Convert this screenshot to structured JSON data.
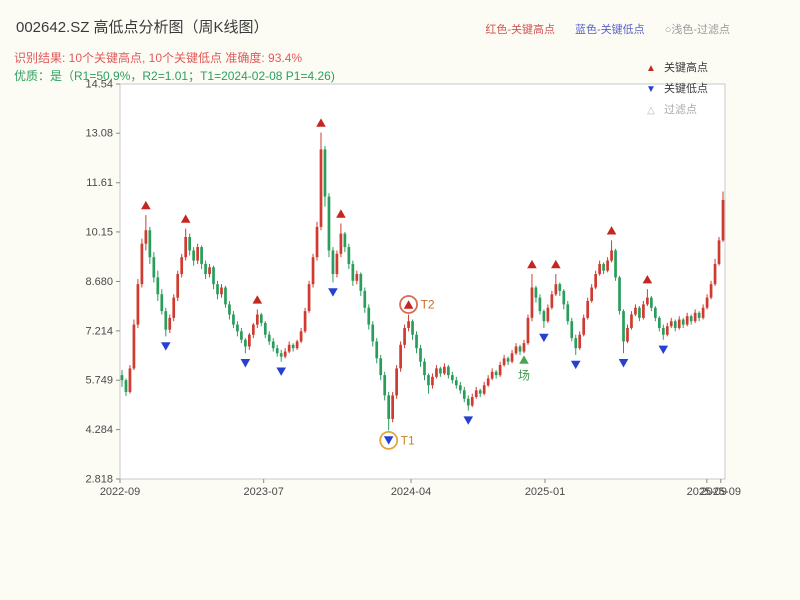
{
  "title": "002642.SZ 高低点分析图（周K线图）",
  "top_legend": {
    "high": "红色-关键高点",
    "low": "蓝色-关键低点",
    "filter": "○浅色-过滤点"
  },
  "subtitle_red": "识别结果: 10个关键高点, 10个关键低点  准确度: 93.4%",
  "subtitle_green": "优质：是（R1=50.9%，R2=1.01；T1=2024-02-08 P1=4.26)",
  "chart_legend": {
    "items": [
      {
        "glyph": "▲",
        "label": "关键高点"
      },
      {
        "glyph": "▼",
        "label": "关键低点"
      },
      {
        "glyph": "△",
        "label": "过滤点"
      }
    ]
  },
  "chart_data": {
    "type": "candlestick",
    "symbol": "002642.SZ",
    "interval": "weekly",
    "title": "002642.SZ 高低点分析图（周K线图）",
    "ylim": [
      2.818,
      14.54
    ],
    "up_color": "#cf3b30",
    "down_color": "#2a9d5c",
    "high_marker_color": "#c42720",
    "low_marker_color": "#2840cf",
    "y_ticks": [
      {
        "label": "14.54",
        "value": 14.54
      },
      {
        "label": "13.08",
        "value": 13.08
      },
      {
        "label": "11.61",
        "value": 11.61
      },
      {
        "label": "10.15",
        "value": 10.15
      },
      {
        "label": "8.680",
        "value": 8.68
      },
      {
        "label": "7.214",
        "value": 7.214
      },
      {
        "label": "5.749",
        "value": 5.749
      },
      {
        "label": "4.284",
        "value": 4.284
      },
      {
        "label": "2.818",
        "value": 2.818
      }
    ],
    "x_ticks": [
      {
        "label": "2022-09",
        "pos": 0.0
      },
      {
        "label": "2023-07",
        "pos": 0.2375
      },
      {
        "label": "2024-04",
        "pos": 0.481
      },
      {
        "label": "2025-01",
        "pos": 0.7025
      },
      {
        "label": "2025-09",
        "pos": 0.97
      },
      {
        "label": "2025-09",
        "pos": 0.993
      }
    ],
    "candles": [
      [
        5.9,
        6.05,
        5.55,
        5.75
      ],
      [
        5.75,
        5.8,
        5.28,
        5.4
      ],
      [
        5.4,
        6.2,
        5.35,
        6.1
      ],
      [
        6.1,
        7.55,
        6.05,
        7.4
      ],
      [
        7.4,
        8.75,
        7.3,
        8.6
      ],
      [
        8.6,
        9.95,
        8.5,
        9.8
      ],
      [
        9.8,
        10.65,
        9.6,
        10.2
      ],
      [
        10.2,
        10.3,
        9.2,
        9.4
      ],
      [
        9.4,
        9.55,
        8.65,
        8.8
      ],
      [
        8.8,
        9.0,
        8.1,
        8.3
      ],
      [
        8.3,
        8.45,
        7.7,
        7.8
      ],
      [
        7.8,
        7.9,
        7.05,
        7.25
      ],
      [
        7.25,
        7.7,
        7.15,
        7.6
      ],
      [
        7.6,
        8.3,
        7.5,
        8.2
      ],
      [
        8.2,
        9.0,
        8.1,
        8.9
      ],
      [
        8.9,
        9.5,
        8.8,
        9.4
      ],
      [
        9.4,
        10.25,
        9.3,
        10.0
      ],
      [
        10.0,
        10.1,
        9.45,
        9.6
      ],
      [
        9.6,
        9.7,
        9.15,
        9.3
      ],
      [
        9.3,
        9.8,
        9.2,
        9.7
      ],
      [
        9.7,
        9.75,
        9.05,
        9.2
      ],
      [
        9.2,
        9.3,
        8.75,
        8.9
      ],
      [
        8.9,
        9.2,
        8.8,
        9.1
      ],
      [
        9.1,
        9.15,
        8.45,
        8.6
      ],
      [
        8.6,
        8.7,
        8.15,
        8.3
      ],
      [
        8.3,
        8.6,
        8.2,
        8.5
      ],
      [
        8.5,
        8.55,
        7.9,
        8.0
      ],
      [
        8.0,
        8.1,
        7.55,
        7.7
      ],
      [
        7.7,
        7.8,
        7.3,
        7.4
      ],
      [
        7.4,
        7.5,
        7.05,
        7.2
      ],
      [
        7.2,
        7.3,
        6.85,
        6.95
      ],
      [
        6.95,
        7.0,
        6.55,
        6.75
      ],
      [
        6.75,
        7.15,
        6.65,
        7.1
      ],
      [
        7.1,
        7.45,
        7.0,
        7.4
      ],
      [
        7.4,
        7.85,
        7.3,
        7.7
      ],
      [
        7.7,
        7.75,
        7.35,
        7.45
      ],
      [
        7.45,
        7.5,
        7.0,
        7.1
      ],
      [
        7.1,
        7.2,
        6.8,
        6.9
      ],
      [
        6.9,
        7.0,
        6.6,
        6.7
      ],
      [
        6.7,
        6.8,
        6.45,
        6.55
      ],
      [
        6.55,
        6.65,
        6.3,
        6.45
      ],
      [
        6.45,
        6.7,
        6.4,
        6.6
      ],
      [
        6.6,
        6.9,
        6.55,
        6.8
      ],
      [
        6.8,
        6.85,
        6.6,
        6.7
      ],
      [
        6.7,
        6.95,
        6.65,
        6.9
      ],
      [
        6.9,
        7.3,
        6.85,
        7.2
      ],
      [
        7.2,
        7.9,
        7.15,
        7.8
      ],
      [
        7.8,
        8.7,
        7.75,
        8.6
      ],
      [
        8.6,
        9.5,
        8.5,
        9.4
      ],
      [
        9.4,
        10.45,
        9.3,
        10.3
      ],
      [
        10.3,
        13.1,
        10.2,
        12.6
      ],
      [
        12.6,
        12.7,
        10.9,
        11.2
      ],
      [
        11.2,
        11.3,
        9.4,
        9.6
      ],
      [
        9.6,
        9.7,
        8.65,
        8.9
      ],
      [
        8.9,
        9.6,
        8.8,
        9.5
      ],
      [
        9.5,
        10.4,
        9.4,
        10.1
      ],
      [
        10.1,
        10.15,
        9.55,
        9.7
      ],
      [
        9.7,
        9.8,
        9.05,
        9.2
      ],
      [
        9.2,
        9.3,
        8.55,
        8.7
      ],
      [
        8.7,
        9.0,
        8.6,
        8.9
      ],
      [
        8.9,
        8.95,
        8.25,
        8.4
      ],
      [
        8.4,
        8.5,
        7.75,
        7.9
      ],
      [
        7.9,
        8.0,
        7.25,
        7.4
      ],
      [
        7.4,
        7.5,
        6.75,
        6.9
      ],
      [
        6.9,
        7.0,
        6.25,
        6.4
      ],
      [
        6.4,
        6.5,
        5.75,
        5.9
      ],
      [
        5.9,
        6.0,
        5.15,
        5.3
      ],
      [
        5.3,
        5.4,
        4.26,
        4.6
      ],
      [
        4.6,
        5.4,
        4.5,
        5.3
      ],
      [
        5.3,
        6.2,
        5.2,
        6.1
      ],
      [
        6.1,
        6.9,
        6.0,
        6.8
      ],
      [
        6.8,
        7.4,
        6.7,
        7.3
      ],
      [
        7.3,
        7.7,
        7.2,
        7.5
      ],
      [
        7.5,
        7.55,
        6.95,
        7.1
      ],
      [
        7.1,
        7.2,
        6.55,
        6.7
      ],
      [
        6.7,
        6.8,
        6.15,
        6.3
      ],
      [
        6.3,
        6.4,
        5.75,
        5.9
      ],
      [
        5.9,
        5.95,
        5.35,
        5.6
      ],
      [
        5.6,
        5.95,
        5.5,
        5.85
      ],
      [
        5.85,
        6.2,
        5.8,
        6.1
      ],
      [
        6.1,
        6.15,
        5.85,
        5.95
      ],
      [
        5.95,
        6.25,
        5.9,
        6.15
      ],
      [
        6.15,
        6.2,
        5.8,
        5.9
      ],
      [
        5.9,
        6.0,
        5.65,
        5.75
      ],
      [
        5.75,
        5.85,
        5.5,
        5.6
      ],
      [
        5.6,
        5.7,
        5.35,
        5.45
      ],
      [
        5.45,
        5.55,
        5.1,
        5.2
      ],
      [
        5.2,
        5.3,
        4.85,
        5.0
      ],
      [
        5.0,
        5.35,
        4.95,
        5.25
      ],
      [
        5.25,
        5.55,
        5.2,
        5.45
      ],
      [
        5.45,
        5.5,
        5.25,
        5.35
      ],
      [
        5.35,
        5.7,
        5.3,
        5.6
      ],
      [
        5.6,
        5.9,
        5.55,
        5.8
      ],
      [
        5.8,
        6.1,
        5.75,
        6.0
      ],
      [
        6.0,
        6.05,
        5.8,
        5.9
      ],
      [
        5.9,
        6.3,
        5.85,
        6.2
      ],
      [
        6.2,
        6.5,
        6.15,
        6.4
      ],
      [
        6.4,
        6.45,
        6.2,
        6.3
      ],
      [
        6.3,
        6.65,
        6.25,
        6.55
      ],
      [
        6.55,
        6.85,
        6.5,
        6.75
      ],
      [
        6.75,
        6.8,
        6.5,
        6.6
      ],
      [
        6.6,
        6.95,
        6.55,
        6.85
      ],
      [
        6.85,
        7.7,
        6.8,
        7.6
      ],
      [
        7.6,
        8.9,
        7.5,
        8.5
      ],
      [
        8.5,
        8.55,
        8.05,
        8.2
      ],
      [
        8.2,
        8.3,
        7.7,
        7.8
      ],
      [
        7.8,
        7.85,
        7.3,
        7.5
      ],
      [
        7.5,
        8.0,
        7.45,
        7.9
      ],
      [
        7.9,
        8.4,
        7.85,
        8.3
      ],
      [
        8.3,
        8.9,
        8.25,
        8.6
      ],
      [
        8.6,
        8.65,
        8.25,
        8.4
      ],
      [
        8.4,
        8.45,
        7.85,
        8.0
      ],
      [
        8.0,
        8.1,
        7.4,
        7.5
      ],
      [
        7.5,
        7.6,
        6.9,
        7.0
      ],
      [
        7.0,
        7.1,
        6.5,
        6.7
      ],
      [
        6.7,
        7.2,
        6.65,
        7.1
      ],
      [
        7.1,
        7.7,
        7.05,
        7.6
      ],
      [
        7.6,
        8.2,
        7.55,
        8.1
      ],
      [
        8.1,
        8.6,
        8.05,
        8.5
      ],
      [
        8.5,
        9.0,
        8.45,
        8.9
      ],
      [
        8.9,
        9.3,
        8.85,
        9.2
      ],
      [
        9.2,
        9.25,
        8.9,
        9.0
      ],
      [
        9.0,
        9.4,
        8.95,
        9.3
      ],
      [
        9.3,
        9.9,
        9.25,
        9.6
      ],
      [
        9.6,
        9.65,
        8.7,
        8.8
      ],
      [
        8.8,
        8.85,
        7.7,
        7.8
      ],
      [
        7.8,
        7.85,
        6.55,
        6.9
      ],
      [
        6.9,
        7.4,
        6.85,
        7.3
      ],
      [
        7.3,
        7.8,
        7.25,
        7.7
      ],
      [
        7.7,
        8.0,
        7.65,
        7.9
      ],
      [
        7.9,
        7.95,
        7.5,
        7.6
      ],
      [
        7.6,
        8.1,
        7.55,
        8.0
      ],
      [
        8.0,
        8.45,
        7.95,
        8.2
      ],
      [
        8.2,
        8.25,
        7.8,
        7.9
      ],
      [
        7.9,
        7.95,
        7.5,
        7.6
      ],
      [
        7.6,
        7.65,
        7.2,
        7.3
      ],
      [
        7.3,
        7.4,
        6.95,
        7.1
      ],
      [
        7.1,
        7.45,
        7.05,
        7.35
      ],
      [
        7.35,
        7.6,
        7.3,
        7.5
      ],
      [
        7.5,
        7.55,
        7.2,
        7.3
      ],
      [
        7.3,
        7.65,
        7.25,
        7.55
      ],
      [
        7.55,
        7.6,
        7.3,
        7.4
      ],
      [
        7.4,
        7.75,
        7.35,
        7.65
      ],
      [
        7.65,
        7.7,
        7.4,
        7.5
      ],
      [
        7.5,
        7.85,
        7.45,
        7.75
      ],
      [
        7.75,
        7.8,
        7.5,
        7.6
      ],
      [
        7.6,
        8.0,
        7.55,
        7.9
      ],
      [
        7.9,
        8.3,
        7.85,
        8.2
      ],
      [
        8.2,
        8.7,
        8.15,
        8.6
      ],
      [
        8.6,
        9.35,
        8.55,
        9.2
      ],
      [
        9.2,
        10.0,
        9.15,
        9.9
      ],
      [
        9.9,
        11.35,
        9.85,
        11.1
      ]
    ],
    "key_highs": [
      {
        "i": 6,
        "price": 10.65
      },
      {
        "i": 16,
        "price": 10.25
      },
      {
        "i": 34,
        "price": 7.85
      },
      {
        "i": 50,
        "price": 13.1
      },
      {
        "i": 55,
        "price": 10.4
      },
      {
        "i": 72,
        "price": 7.7
      },
      {
        "i": 103,
        "price": 8.9
      },
      {
        "i": 109,
        "price": 8.9
      },
      {
        "i": 123,
        "price": 9.9
      },
      {
        "i": 132,
        "price": 8.45
      }
    ],
    "key_lows": [
      {
        "i": 11,
        "price": 7.05
      },
      {
        "i": 31,
        "price": 6.55
      },
      {
        "i": 40,
        "price": 6.3
      },
      {
        "i": 53,
        "price": 8.65
      },
      {
        "i": 67,
        "price": 4.26
      },
      {
        "i": 87,
        "price": 4.85
      },
      {
        "i": 106,
        "price": 7.3
      },
      {
        "i": 114,
        "price": 6.5
      },
      {
        "i": 126,
        "price": 6.55
      },
      {
        "i": 136,
        "price": 6.95
      }
    ],
    "annotations": [
      {
        "label": "T1",
        "i": 67,
        "price": 4.26,
        "placement": "below",
        "ring_color": "#e2a43c",
        "text_color": "#c98425"
      },
      {
        "label": "T2",
        "i": 72,
        "price": 7.7,
        "placement": "above",
        "ring_color": "#d96b52",
        "text_color": "#c96a35"
      },
      {
        "label": "场",
        "i": 101,
        "price": 6.6,
        "placement": "entry",
        "marker_color": "#49a552",
        "text_color": "#3f9e4a"
      }
    ]
  }
}
